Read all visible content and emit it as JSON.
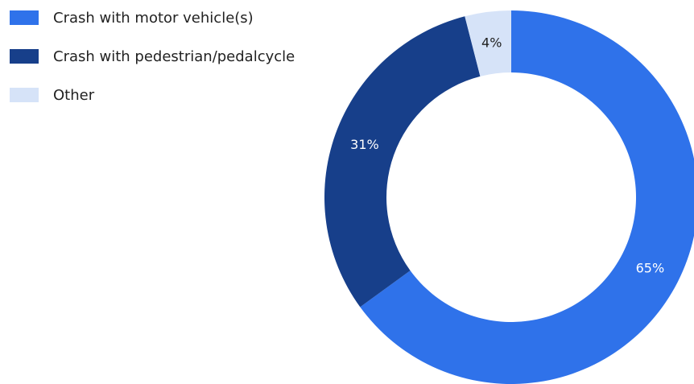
{
  "chart_data": {
    "type": "pie",
    "donut": true,
    "categories": [
      "Crash with motor vehicle(s)",
      "Crash with pedestrian/pedalcycle",
      "Other"
    ],
    "values": [
      65,
      31,
      4
    ],
    "labels": [
      "65%",
      "31%",
      "4%"
    ],
    "colors": [
      "#2f72ea",
      "#173f8a",
      "#d6e3f8"
    ],
    "label_colors": [
      "#ffffff",
      "#ffffff",
      "#222222"
    ],
    "legend_position": "top-left"
  }
}
